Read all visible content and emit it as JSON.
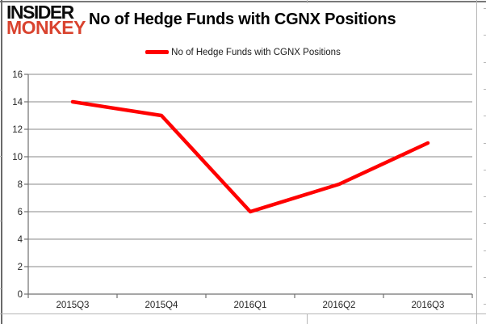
{
  "logo": {
    "line1": "INSIDER",
    "line2": "MONKEY"
  },
  "title": "No of Hedge Funds with CGNX Positions",
  "legend": {
    "label": "No of Hedge Funds with CGNX Positions"
  },
  "colors": {
    "series": "#FF0000",
    "logo_accent": "#d9432f",
    "gridline": "#8a8a8a",
    "axis": "#707070",
    "tick_text": "#262626"
  },
  "chart_data": {
    "type": "line",
    "title": "No of Hedge Funds with CGNX Positions",
    "categories": [
      "2015Q3",
      "2015Q4",
      "2016Q1",
      "2016Q2",
      "2016Q3"
    ],
    "series": [
      {
        "name": "No of Hedge Funds with CGNX Positions",
        "values": [
          14,
          13,
          6,
          8,
          11
        ],
        "color": "#FF0000"
      }
    ],
    "xlabel": "",
    "ylabel": "",
    "ylim": [
      0,
      16
    ],
    "ytick_step": 2,
    "grid": true,
    "legend_position": "top"
  }
}
